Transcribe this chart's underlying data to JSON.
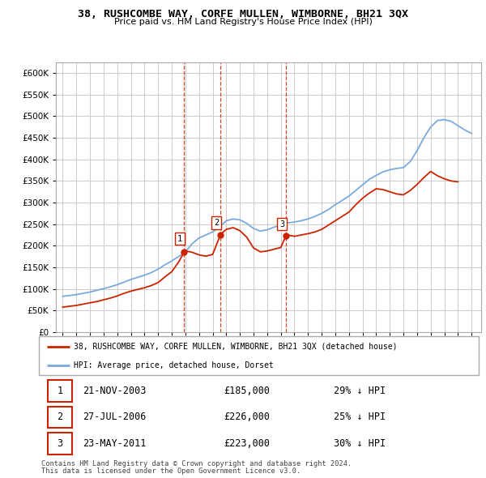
{
  "title": "38, RUSHCOMBE WAY, CORFE MULLEN, WIMBORNE, BH21 3QX",
  "subtitle": "Price paid vs. HM Land Registry's House Price Index (HPI)",
  "legend_line1": "38, RUSHCOMBE WAY, CORFE MULLEN, WIMBORNE, BH21 3QX (detached house)",
  "legend_line2": "HPI: Average price, detached house, Dorset",
  "footnote1": "Contains HM Land Registry data © Crown copyright and database right 2024.",
  "footnote2": "This data is licensed under the Open Government Licence v3.0.",
  "transactions": [
    {
      "num": 1,
      "date": "21-NOV-2003",
      "price": 185000,
      "pct": "29%",
      "dir": "↓",
      "year": 2003.9
    },
    {
      "num": 2,
      "date": "27-JUL-2006",
      "price": 226000,
      "pct": "25%",
      "dir": "↓",
      "year": 2006.58
    },
    {
      "num": 3,
      "date": "23-MAY-2011",
      "price": 223000,
      "pct": "30%",
      "dir": "↓",
      "year": 2011.38
    }
  ],
  "hpi_color": "#7aaadd",
  "price_color": "#cc2200",
  "vline_color": "#cc2200",
  "grid_color": "#cccccc",
  "background_color": "#ffffff",
  "ylim": [
    0,
    625000
  ],
  "yticks": [
    0,
    50000,
    100000,
    150000,
    200000,
    250000,
    300000,
    350000,
    400000,
    450000,
    500000,
    550000,
    600000
  ],
  "hpi_data_years": [
    1995,
    1995.5,
    1996,
    1996.5,
    1997,
    1997.5,
    1998,
    1998.5,
    1999,
    1999.5,
    2000,
    2000.5,
    2001,
    2001.5,
    2002,
    2002.5,
    2003,
    2003.5,
    2004,
    2004.5,
    2005,
    2005.5,
    2006,
    2006.5,
    2007,
    2007.5,
    2008,
    2008.5,
    2009,
    2009.5,
    2010,
    2010.5,
    2011,
    2011.5,
    2012,
    2012.5,
    2013,
    2013.5,
    2014,
    2014.5,
    2015,
    2015.5,
    2016,
    2016.5,
    2017,
    2017.5,
    2018,
    2018.5,
    2019,
    2019.5,
    2020,
    2020.5,
    2021,
    2021.5,
    2022,
    2022.5,
    2023,
    2023.5,
    2024,
    2024.5,
    2025
  ],
  "hpi_data_values": [
    83000,
    85000,
    87000,
    90000,
    93000,
    97000,
    101000,
    105000,
    110000,
    116000,
    122000,
    127000,
    132000,
    138000,
    146000,
    156000,
    165000,
    175000,
    186000,
    205000,
    218000,
    225000,
    232000,
    243000,
    258000,
    262000,
    260000,
    252000,
    240000,
    234000,
    237000,
    243000,
    248000,
    253000,
    255000,
    258000,
    262000,
    268000,
    275000,
    284000,
    295000,
    305000,
    315000,
    328000,
    341000,
    354000,
    363000,
    371000,
    376000,
    379000,
    381000,
    395000,
    420000,
    450000,
    475000,
    490000,
    492000,
    488000,
    478000,
    468000,
    460000
  ],
  "price_data_years": [
    1995,
    1995.5,
    1996,
    1996.5,
    1997,
    1997.5,
    1998,
    1998.5,
    1999,
    1999.5,
    2000,
    2000.5,
    2001,
    2001.5,
    2002,
    2002.5,
    2003,
    2003.5,
    2003.9,
    2004,
    2004.5,
    2005,
    2005.5,
    2006,
    2006.58,
    2007,
    2007.5,
    2008,
    2008.5,
    2009,
    2009.5,
    2010,
    2010.5,
    2011,
    2011.38,
    2011.5,
    2012,
    2012.5,
    2013,
    2013.5,
    2014,
    2014.5,
    2015,
    2015.5,
    2016,
    2016.5,
    2017,
    2017.5,
    2018,
    2018.5,
    2019,
    2019.5,
    2020,
    2020.5,
    2021,
    2021.5,
    2022,
    2022.5,
    2023,
    2023.5,
    2024
  ],
  "price_data_values": [
    58000,
    60000,
    62000,
    65000,
    68000,
    71000,
    75000,
    79000,
    84000,
    90000,
    95000,
    99000,
    103000,
    108000,
    115000,
    128000,
    140000,
    162000,
    185000,
    188000,
    185000,
    179000,
    176000,
    180000,
    226000,
    238000,
    242000,
    235000,
    220000,
    195000,
    186000,
    188000,
    192000,
    196000,
    223000,
    225000,
    222000,
    225000,
    228000,
    232000,
    238000,
    248000,
    258000,
    268000,
    278000,
    295000,
    310000,
    322000,
    332000,
    330000,
    325000,
    320000,
    318000,
    328000,
    342000,
    358000,
    372000,
    362000,
    355000,
    350000,
    348000
  ]
}
